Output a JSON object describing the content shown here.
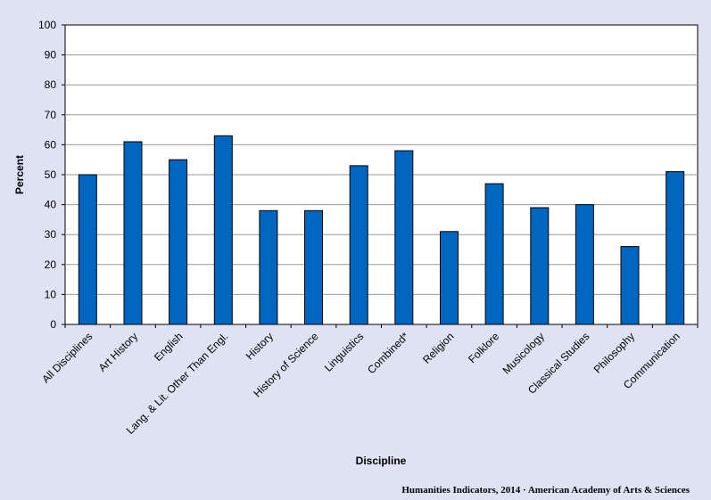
{
  "chart_data": {
    "type": "bar",
    "categories": [
      "All Disciplines",
      "Art History",
      "English",
      "Lang. & Lit. Other Than Engl.",
      "History",
      "History of Science",
      "Linguistics",
      "Combined*",
      "Religion",
      "Folklore",
      "Musicology",
      "Classical Studies",
      "Philosophy",
      "Communication"
    ],
    "values": [
      50,
      61,
      55,
      63,
      38,
      38,
      53,
      58,
      31,
      47,
      39,
      40,
      26,
      51
    ],
    "xlabel": "Discipline",
    "ylabel": "Percent",
    "ylim": [
      0,
      100
    ],
    "yticks": [
      0,
      10,
      20,
      30,
      40,
      50,
      60,
      70,
      80,
      90,
      100
    ],
    "grid": true,
    "bar_color": "#0066c0",
    "plot_background": "#ffffff",
    "page_background": "#dfe2f2"
  },
  "footer": {
    "credit": "Humanities Indicators, 2014 · American Academy of Arts & Sciences"
  }
}
